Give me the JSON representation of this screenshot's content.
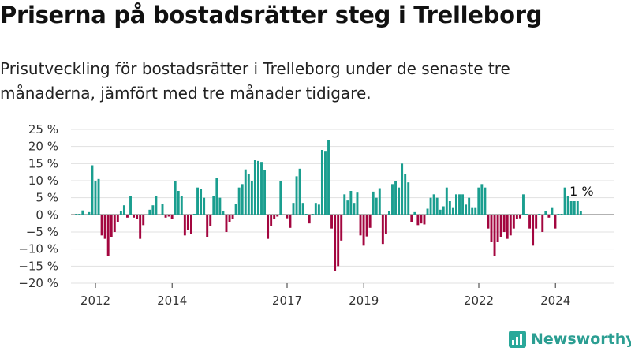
{
  "title": "Priserna på bostadsrätter steg i Trelleborg",
  "subtitle": "Prisutveckling för bostadsrätter i Trelleborg under de senaste tre månaderna, jämfört med tre månader tidigare.",
  "brand": {
    "name": "Newsworthy",
    "icon": "newsworthy-logo-icon"
  },
  "colors": {
    "positive": "#1a9e8f",
    "negative": "#a3063f",
    "grid": "#e1e1e1",
    "axis": "#333333"
  },
  "chart_data": {
    "type": "bar",
    "ylim": [
      -20,
      25
    ],
    "y_ticks": [
      25,
      20,
      15,
      10,
      5,
      0,
      -5,
      -10,
      -15,
      -20
    ],
    "y_tick_labels": [
      "25 %",
      "20 %",
      "15 %",
      "10 %",
      "5 %",
      "0 %",
      "−5 %",
      "−10 %",
      "−15 %",
      "−20 %"
    ],
    "x_tick_labels": [
      "2012",
      "2014",
      "2017",
      "2019",
      "2022",
      "2024"
    ],
    "x_tick_positions": [
      2012.0,
      2014.0,
      2017.0,
      2019.0,
      2022.0,
      2024.0
    ],
    "x_start": 2011.5,
    "x_step": 0.0833,
    "last_value_label": "1 %",
    "values": [
      0.3,
      0.3,
      1.3,
      0.1,
      0.8,
      14.5,
      10,
      10.5,
      -6,
      -7,
      -12,
      -6.5,
      -5,
      -2,
      1,
      2.8,
      -0.8,
      5.5,
      -0.8,
      -1.2,
      -7,
      -3,
      0,
      1.5,
      2.8,
      5.5,
      0,
      3.3,
      -0.8,
      -0.5,
      -1.2,
      10,
      7,
      5.5,
      -6,
      -4.5,
      -5.5,
      0.3,
      8,
      7.5,
      5,
      -6.5,
      -3.3,
      5.5,
      10.8,
      5,
      1,
      -5,
      -2,
      -1.2,
      3.3,
      8,
      9,
      13.3,
      12,
      10,
      16,
      15.8,
      15.5,
      13,
      -7,
      -3.3,
      -1.2,
      -0.5,
      10,
      0,
      -1,
      -3.8,
      3.5,
      11.3,
      13.5,
      3.5,
      0.3,
      -2.5,
      0.3,
      3.5,
      3,
      19,
      18.5,
      22,
      -4,
      -16.5,
      -15,
      -7.5,
      6,
      4.2,
      7,
      3.5,
      6.5,
      -6,
      -9,
      -6.3,
      -3.8,
      6.8,
      5,
      7.8,
      -8.5,
      -5.5,
      1,
      9,
      10,
      8,
      15,
      12,
      9.5,
      -2,
      0.8,
      -3,
      -2.5,
      -2.8,
      1.8,
      5,
      6,
      5,
      1.5,
      2.5,
      8,
      4,
      2,
      6,
      6,
      6,
      3,
      5,
      2,
      2,
      8,
      9,
      8,
      -4,
      -8,
      -12,
      -8,
      -6.5,
      -5,
      -7,
      -6,
      -4,
      -1.2,
      -1,
      6,
      0.3,
      -4,
      -9,
      -4,
      0.3,
      -5,
      1,
      -0.8,
      2,
      -4,
      0.3,
      0.3,
      8,
      5.5,
      4,
      4,
      4,
      1
    ]
  }
}
